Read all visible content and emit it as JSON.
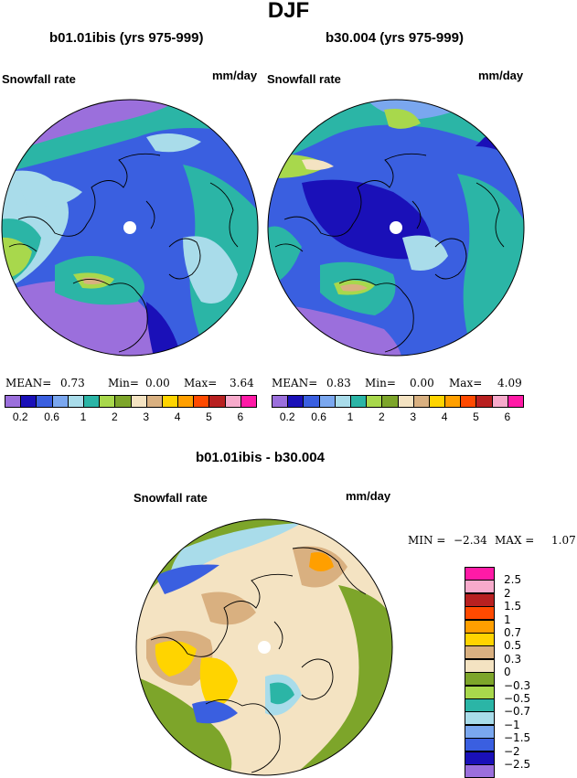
{
  "title": "DJF",
  "panels": [
    {
      "subtitle": "b01.01ibis (yrs 975-999)",
      "variable": "Snowfall rate",
      "units": "mm/day",
      "mean_label": "MEAN=",
      "mean": "0.73",
      "min_label": "Min=",
      "min": "0.00",
      "max_label": "Max=",
      "max": "3.64"
    },
    {
      "subtitle": "b30.004 (yrs 975-999)",
      "variable": "Snowfall rate",
      "units": "mm/day",
      "mean_label": "MEAN=",
      "mean": "0.83",
      "min_label": "Min=",
      "min": "0.00",
      "max_label": "Max=",
      "max": "4.09"
    }
  ],
  "diff": {
    "subtitle": "b01.01ibis - b30.004",
    "variable": "Snowfall rate",
    "units": "mm/day",
    "min_label": "MIN =",
    "min": "−2.34",
    "max_label": "MAX =",
    "max": "1.07"
  },
  "colorbar_top": {
    "colors": [
      "#9b6fdc",
      "#1a10b8",
      "#3a5fe0",
      "#7aa7ef",
      "#a9dcea",
      "#2bb5a6",
      "#a8d84c",
      "#7da52a",
      "#f4e3c2",
      "#d9b080",
      "#ffd400",
      "#ff9f00",
      "#ff4a00",
      "#b82020",
      "#f7aacb",
      "#ff1aa6"
    ],
    "tick_labels": [
      "0.2",
      "0.6",
      "1",
      "2",
      "3",
      "4",
      "5",
      "6"
    ]
  },
  "colorbar_diff": {
    "colors": [
      "#ff1aa6",
      "#f7aacb",
      "#b82020",
      "#ff4a00",
      "#ff9f00",
      "#ffd400",
      "#d9b080",
      "#f4e3c2",
      "#7da52a",
      "#a8d84c",
      "#2bb5a6",
      "#a9dcea",
      "#7aa7ef",
      "#3a5fe0",
      "#1a10b8",
      "#9b6fdc"
    ],
    "labels": [
      "2.5",
      "2",
      "1.5",
      "1",
      "0.7",
      "0.5",
      "0.3",
      "0",
      "−0.3",
      "−0.5",
      "−0.7",
      "−1",
      "−1.5",
      "−2",
      "−2.5"
    ]
  }
}
